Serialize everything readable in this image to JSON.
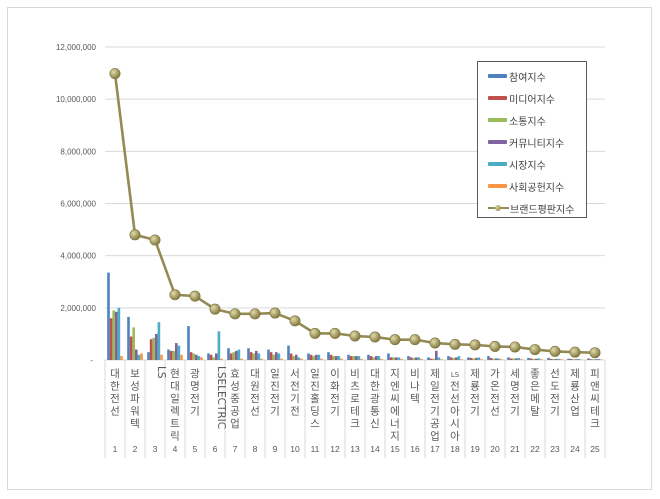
{
  "chart_data": {
    "type": "bar",
    "title": "",
    "xlabel": "",
    "ylabel": "",
    "ylim": [
      0,
      12000000
    ],
    "yticks": [
      "-",
      "2,000,000",
      "4,000,000",
      "6,000,000",
      "8,000,000",
      "10,000,000",
      "12,000,000"
    ],
    "grid": true,
    "legend_position": "right-top-inside",
    "categories": [
      "대한전선",
      "보성파워텍",
      "LS",
      "현대일렉트릭",
      "광명전기",
      "LSELECTRIC",
      "효성중공업",
      "대원전선",
      "일진전기",
      "서전기전",
      "일진홀딩스",
      "이화전기",
      "비츠로테크",
      "대한광통신",
      "지엔씨에너지",
      "비나텍",
      "제일전기공업",
      "LS전선아시아",
      "제룡전기",
      "가온전선",
      "세명전기",
      "좋은메탈",
      "선도전기",
      "제룡산업",
      "피앤씨테크"
    ],
    "ranks": [
      "1",
      "2",
      "3",
      "4",
      "5",
      "6",
      "7",
      "8",
      "9",
      "10",
      "11",
      "12",
      "13",
      "14",
      "15",
      "16",
      "17",
      "18",
      "19",
      "20",
      "21",
      "22",
      "23",
      "24",
      "25"
    ],
    "series": [
      {
        "name": "참여지수",
        "type": "bar",
        "color": "#4f81bd",
        "values": [
          3350000,
          1650000,
          300000,
          400000,
          1300000,
          250000,
          450000,
          450000,
          400000,
          550000,
          250000,
          300000,
          200000,
          200000,
          250000,
          150000,
          100000,
          150000,
          100000,
          150000,
          100000,
          80000,
          80000,
          50000,
          60000
        ]
      },
      {
        "name": "미디어지수",
        "type": "bar",
        "color": "#c0504d",
        "values": [
          1600000,
          900000,
          800000,
          350000,
          300000,
          200000,
          250000,
          300000,
          300000,
          250000,
          200000,
          200000,
          150000,
          150000,
          100000,
          100000,
          50000,
          100000,
          80000,
          80000,
          60000,
          60000,
          40000,
          40000,
          30000
        ]
      },
      {
        "name": "소통지수",
        "type": "bar",
        "color": "#9bbb59",
        "values": [
          1900000,
          1250000,
          850000,
          350000,
          250000,
          100000,
          300000,
          250000,
          200000,
          150000,
          150000,
          150000,
          150000,
          100000,
          100000,
          80000,
          50000,
          80000,
          60000,
          50000,
          60000,
          40000,
          40000,
          30000,
          30000
        ]
      },
      {
        "name": "커뮤니티지수",
        "type": "bar",
        "color": "#8064a2",
        "values": [
          1850000,
          400000,
          1000000,
          650000,
          200000,
          250000,
          350000,
          350000,
          300000,
          200000,
          200000,
          150000,
          150000,
          150000,
          100000,
          100000,
          350000,
          100000,
          80000,
          60000,
          60000,
          50000,
          40000,
          30000,
          30000
        ]
      },
      {
        "name": "시장지수",
        "type": "bar",
        "color": "#4bacc6",
        "values": [
          2000000,
          200000,
          1450000,
          550000,
          150000,
          1100000,
          400000,
          250000,
          250000,
          100000,
          200000,
          150000,
          150000,
          150000,
          100000,
          100000,
          100000,
          150000,
          100000,
          60000,
          80000,
          60000,
          40000,
          40000,
          40000
        ]
      },
      {
        "name": "사회공헌지수",
        "type": "bar",
        "color": "#f79646",
        "values": [
          150000,
          250000,
          200000,
          200000,
          100000,
          50000,
          50000,
          50000,
          50000,
          50000,
          50000,
          50000,
          40000,
          40000,
          40000,
          40000,
          30000,
          30000,
          30000,
          30000,
          30000,
          30000,
          30000,
          20000,
          20000
        ]
      },
      {
        "name": "브랜드평판지수",
        "type": "line",
        "color": "#948a54",
        "values": [
          10980000,
          4800000,
          4600000,
          2500000,
          2450000,
          1950000,
          1770000,
          1770000,
          1800000,
          1500000,
          1020000,
          1020000,
          920000,
          880000,
          780000,
          780000,
          650000,
          600000,
          580000,
          520000,
          500000,
          400000,
          330000,
          300000,
          280000
        ]
      }
    ]
  },
  "legend": {
    "items": [
      {
        "label": "참여지수",
        "color": "#4f81bd"
      },
      {
        "label": "미디어지수",
        "color": "#c0504d"
      },
      {
        "label": "소통지수",
        "color": "#9bbb59"
      },
      {
        "label": "커뮤니티지수",
        "color": "#8064a2"
      },
      {
        "label": "시장지수",
        "color": "#4bacc6"
      },
      {
        "label": "사회공헌지수",
        "color": "#f79646"
      },
      {
        "label": "브랜드평판지수",
        "color": "#948a54"
      }
    ]
  }
}
